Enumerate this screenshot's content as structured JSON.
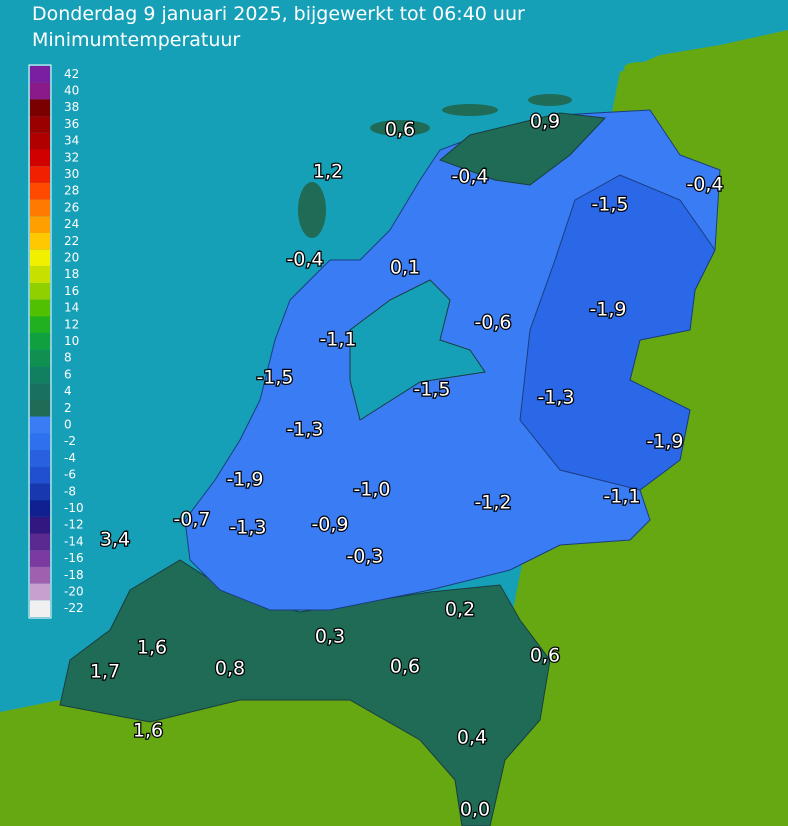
{
  "header": {
    "title": "Donderdag 9 januari 2025, bijgewerkt tot 06:40 uur",
    "subtitle": "Minimumtemperatuur"
  },
  "legend": {
    "labels": [
      42,
      40,
      38,
      36,
      34,
      32,
      30,
      28,
      26,
      24,
      22,
      20,
      18,
      16,
      14,
      12,
      10,
      8,
      6,
      4,
      2,
      0,
      -2,
      -4,
      -6,
      -8,
      -10,
      -12,
      -14,
      -16,
      -18,
      -20,
      -22
    ]
  },
  "stations": [
    "0,6",
    "0,9",
    "1,2",
    "-0,4",
    "-0,4",
    "-1,5",
    "-0,4",
    "0,1",
    "-0,6",
    "-1,9",
    "-1,1",
    "-1,5",
    "-1,5",
    "-1,3",
    "-1,3",
    "-1,9",
    "-1,9",
    "-1,0",
    "-1,2",
    "-1,1",
    "-0,7",
    "-1,3",
    "-0,9",
    "3,4",
    "-0,3",
    "0,2",
    "0,3",
    "1,6",
    "0,6",
    "1,7",
    "0,8",
    "0,6",
    "1,6",
    "0,4",
    "0,0"
  ]
}
